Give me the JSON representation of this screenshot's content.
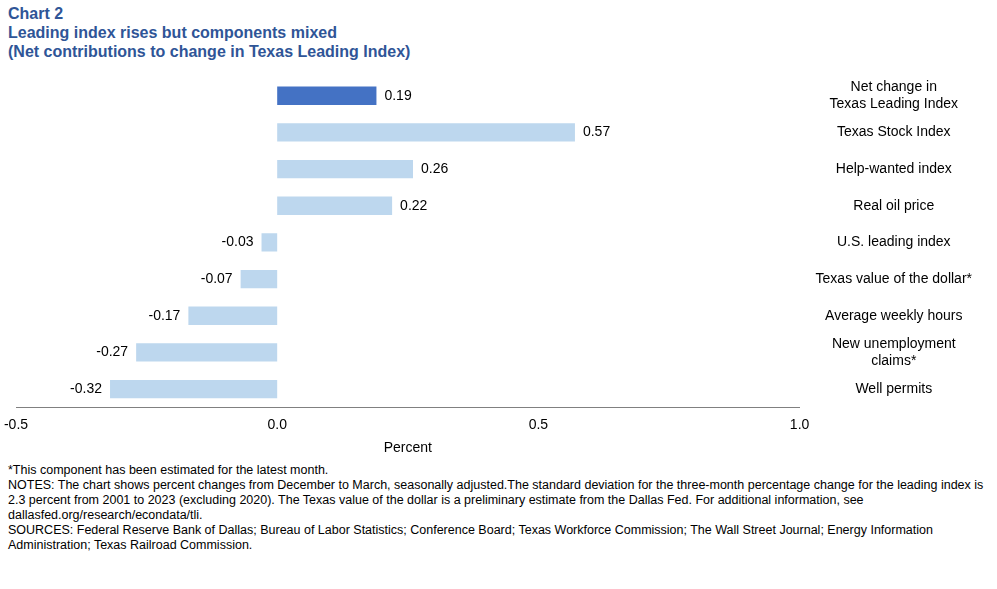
{
  "chart_data": {
    "type": "bar",
    "orientation": "horizontal",
    "title": "Chart 2",
    "subtitle": [
      "Leading index rises but components mixed",
      "(Net contributions to change in Texas Leading Index)"
    ],
    "categories": [
      "Net change in\nTexas Leading Index",
      "Texas Stock Index",
      "Help-wanted index",
      "Real oil price",
      "U.S. leading index",
      "Texas value of the dollar*",
      "Average weekly hours",
      "New unemployment\nclaims*",
      "Well permits"
    ],
    "values": [
      0.19,
      0.57,
      0.26,
      0.22,
      -0.03,
      -0.07,
      -0.17,
      -0.27,
      -0.32
    ],
    "colors": [
      "#4472c4",
      "#bdd7ee",
      "#bdd7ee",
      "#bdd7ee",
      "#bdd7ee",
      "#bdd7ee",
      "#bdd7ee",
      "#bdd7ee",
      "#bdd7ee"
    ],
    "data_labels": true,
    "xlabel": "Percent",
    "xlim": [
      -0.5,
      1.0
    ],
    "xticks": [
      -0.5,
      {
        "value": 0,
        "label": "0.0"
      },
      0.5,
      {
        "value": 1.0,
        "label": "1.0"
      }
    ],
    "grid": false,
    "notes": [
      "*This component has been estimated for the latest month.",
      "NOTES: The chart shows percent changes from December to March, seasonally adjusted.The standard deviation for the three-month percentage change for the leading index is 2.3 percent from 2001 to 2023 (excluding 2020). The Texas value of the dollar is a preliminary estimate from the Dallas Fed. For additional information, see dallasfed.org/research/econdata/tli.",
      "SOURCES: Federal Reserve Bank of Dallas; Bureau of Labor Statistics; Conference Board; Texas Workforce Commission; The Wall Street Journal; Energy Information Administration; Texas Railroad Commission."
    ]
  }
}
